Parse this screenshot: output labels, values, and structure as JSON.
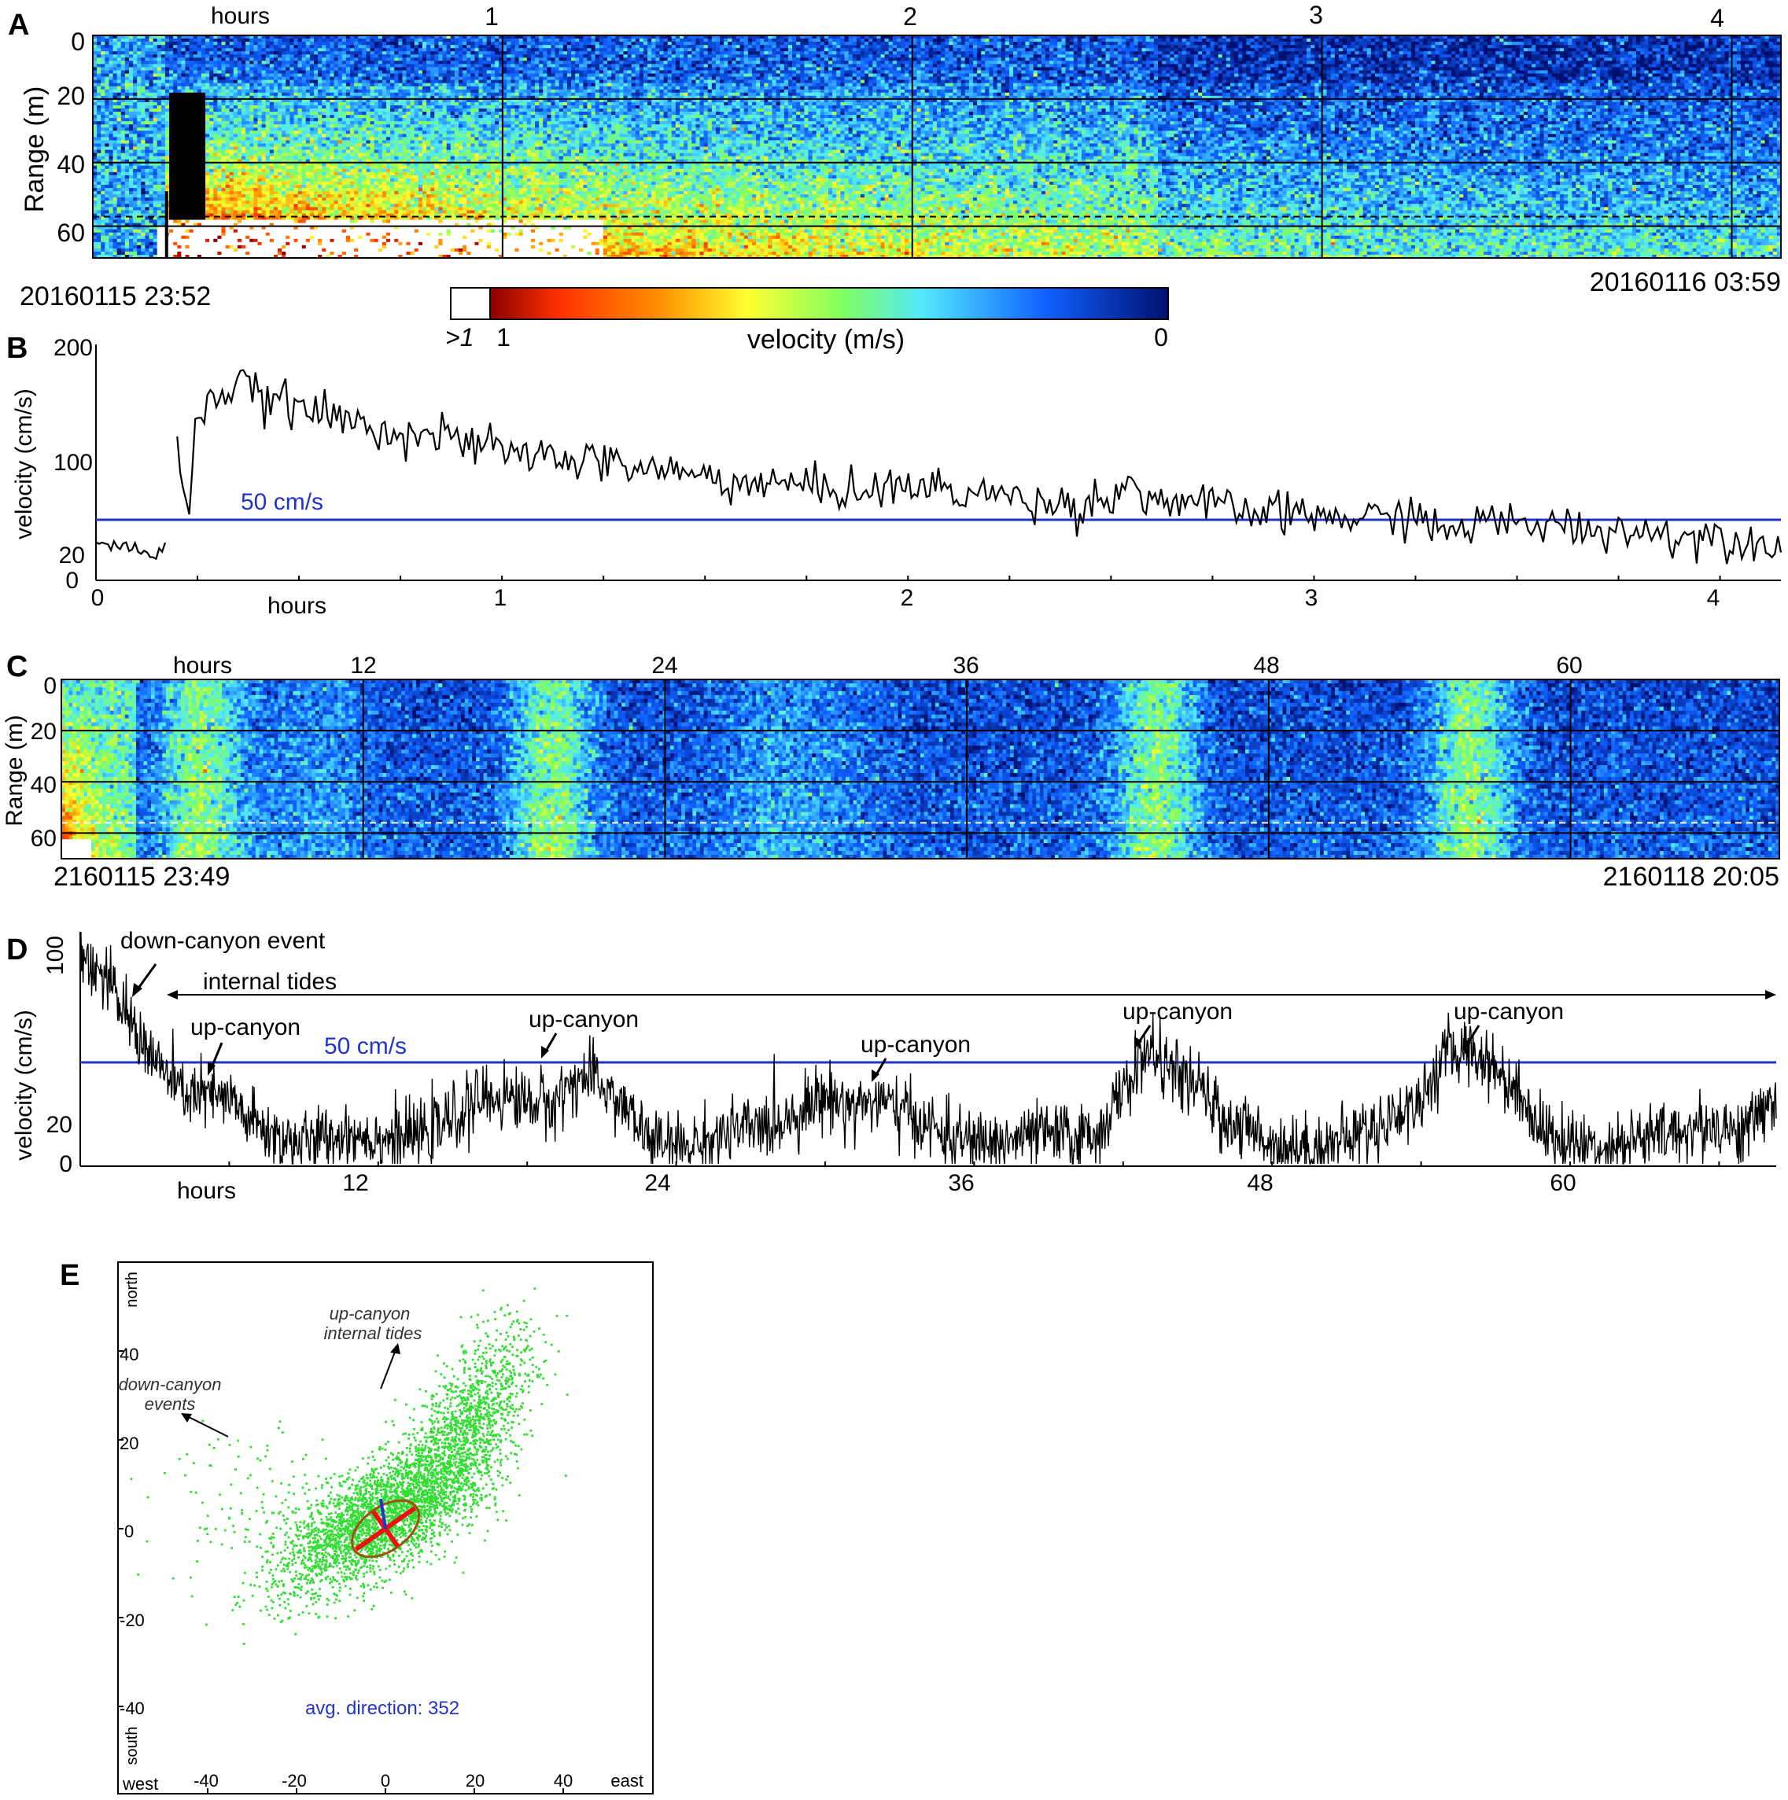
{
  "panels": {
    "A": {
      "letter": "A",
      "hours_label": "hours",
      "top_ticks": [
        "1",
        "2",
        "3",
        "4"
      ],
      "ylabel": "Range (m)",
      "yticks": [
        "0",
        "20",
        "40",
        "60"
      ],
      "start_label": "20160115 23:52",
      "end_label": "20160116 03:59"
    },
    "colorbar": {
      "label": "velocity (m/s)",
      "left_label": ">1",
      "mid_label": "1",
      "right_label": "0"
    },
    "B": {
      "letter": "B",
      "ylabel": "velocity (cm/s)",
      "yticks": [
        "200",
        "100",
        "20",
        "0"
      ],
      "xticks": [
        "0",
        "1",
        "2",
        "3",
        "4"
      ],
      "hours_label": "hours",
      "threshold_label": "50 cm/s"
    },
    "C": {
      "letter": "C",
      "hours_label": "hours",
      "top_ticks": [
        "12",
        "24",
        "36",
        "48",
        "60"
      ],
      "ylabel": "Range (m)",
      "yticks": [
        "0",
        "20",
        "40",
        "60"
      ],
      "start_label": "2160115 23:49",
      "end_label": "2160118 20:05"
    },
    "D": {
      "letter": "D",
      "ylabel": "velocity (cm/s)",
      "yticks": [
        "100",
        "20",
        "0"
      ],
      "xticks": [
        "12",
        "24",
        "36",
        "48",
        "60"
      ],
      "hours_label": "hours",
      "threshold_label": "50 cm/s",
      "annotations": {
        "down_event": "down-canyon event",
        "internal_tides": "internal tides",
        "up1": "up-canyon",
        "up2": "up-canyon",
        "up3": "up-canyon",
        "up4": "up-canyon",
        "up5": "up-canyon"
      }
    },
    "E": {
      "letter": "E",
      "xticks": [
        "-40",
        "-20",
        "0",
        "20",
        "40"
      ],
      "yticks": [
        "40",
        "20",
        "0",
        "-20",
        "-40"
      ],
      "north": "north",
      "south": "south",
      "west": "west",
      "east": "east",
      "annot_up_1": "up-canyon",
      "annot_up_2": "internal tides",
      "annot_down_1": "down-canyon",
      "annot_down_2": "events",
      "avg_direction": "avg. direction: 352"
    }
  },
  "chart_data": [
    {
      "panel": "A",
      "type": "heatmap",
      "x_unit": "hours",
      "xlim": [
        0,
        4.12
      ],
      "y_unit": "m",
      "ylim": [
        0,
        70
      ],
      "threshold_lines_m": [
        20,
        40,
        60
      ],
      "colorscale": [
        "#8b0000",
        "#ff3000",
        "#ff8c00",
        "#ffff30",
        "#80ff60",
        "#40e0ff",
        "#1060ff",
        "#001070"
      ],
      "color_range_m_per_s": [
        1,
        0
      ],
      "description_values": {
        "event_start_hours": 0.18,
        "peak_core_range_m": [
          20,
          60
        ]
      }
    },
    {
      "panel": "B",
      "type": "line",
      "xlim": [
        0,
        4.15
      ],
      "ylim": [
        0,
        200
      ],
      "threshold": 50,
      "threshold_color": "#2233cc",
      "x": [
        0,
        0.05,
        0.1,
        0.15,
        0.17,
        0.2,
        0.23,
        0.25,
        0.28,
        0.3,
        0.35,
        0.4,
        0.45,
        0.5,
        0.6,
        0.7,
        0.8,
        0.9,
        1.0,
        1.1,
        1.2,
        1.3,
        1.4,
        1.5,
        1.6,
        1.7,
        1.8,
        1.9,
        2.0,
        2.1,
        2.2,
        2.3,
        2.4,
        2.5,
        2.55,
        2.6,
        2.7,
        2.8,
        2.9,
        3.0,
        3.1,
        3.2,
        3.25,
        3.3,
        3.4,
        3.5,
        3.6,
        3.7,
        3.8,
        3.9,
        4.0,
        4.1,
        4.15
      ],
      "y": [
        32,
        30,
        28,
        20,
        30,
        110,
        70,
        140,
        165,
        155,
        170,
        160,
        155,
        150,
        140,
        132,
        128,
        120,
        112,
        108,
        105,
        100,
        95,
        90,
        85,
        83,
        80,
        78,
        82,
        78,
        75,
        70,
        65,
        72,
        85,
        70,
        68,
        60,
        58,
        56,
        54,
        54,
        62,
        40,
        50,
        50,
        47,
        45,
        42,
        40,
        38,
        34,
        36
      ]
    },
    {
      "panel": "C",
      "type": "heatmap",
      "x_unit": "hours",
      "xlim": [
        0,
        68.3
      ],
      "y_unit": "m",
      "ylim": [
        0,
        70
      ],
      "threshold_lines_m": [
        20,
        40,
        60
      ],
      "colorscale": [
        "#8b0000",
        "#ff3000",
        "#ff8c00",
        "#ffff30",
        "#80ff60",
        "#40e0ff",
        "#1060ff",
        "#001070"
      ],
      "color_range_m_per_s": [
        1,
        0
      ]
    },
    {
      "panel": "D",
      "type": "line",
      "xlim": [
        0,
        68.3
      ],
      "ylim": [
        0,
        100
      ],
      "threshold": 50,
      "threshold_color": "#2233cc",
      "x": [
        0,
        1,
        2,
        3,
        4,
        5,
        6,
        7,
        8,
        9,
        10,
        11,
        12,
        13,
        14,
        15,
        16,
        17,
        18,
        19,
        20,
        21,
        22,
        23,
        24,
        25,
        26,
        27,
        28,
        29,
        30,
        31,
        32,
        33,
        34,
        35,
        36,
        37,
        38,
        39,
        40,
        41,
        42,
        43,
        44,
        45,
        46,
        47,
        48,
        49,
        50,
        51,
        52,
        53,
        54,
        55,
        56,
        57,
        58,
        59,
        60,
        61,
        62,
        63,
        64,
        65,
        66,
        67,
        68
      ],
      "y": [
        92,
        80,
        62,
        45,
        32,
        30,
        28,
        18,
        12,
        10,
        12,
        14,
        12,
        12,
        14,
        20,
        28,
        30,
        28,
        26,
        38,
        35,
        24,
        10,
        8,
        10,
        14,
        16,
        18,
        24,
        30,
        26,
        28,
        24,
        18,
        12,
        10,
        10,
        12,
        14,
        12,
        14,
        32,
        50,
        40,
        34,
        20,
        16,
        10,
        8,
        8,
        12,
        16,
        22,
        28,
        48,
        50,
        42,
        30,
        14,
        10,
        8,
        10,
        12,
        14,
        16,
        18,
        14,
        28
      ]
    },
    {
      "panel": "E",
      "type": "scatter",
      "xlim": [
        -60,
        60
      ],
      "ylim": [
        -60,
        60
      ],
      "xlabel": "",
      "ylabel": "",
      "point_color": "#33dd33",
      "cluster_center": [
        -2,
        2
      ],
      "tide_cluster_center": [
        18,
        22
      ],
      "ellipse": {
        "cx": 0,
        "cy": 0,
        "rx": 8.5,
        "ry": 5,
        "angle_deg": 35
      },
      "mean_vector_direction_deg": 352
    }
  ]
}
